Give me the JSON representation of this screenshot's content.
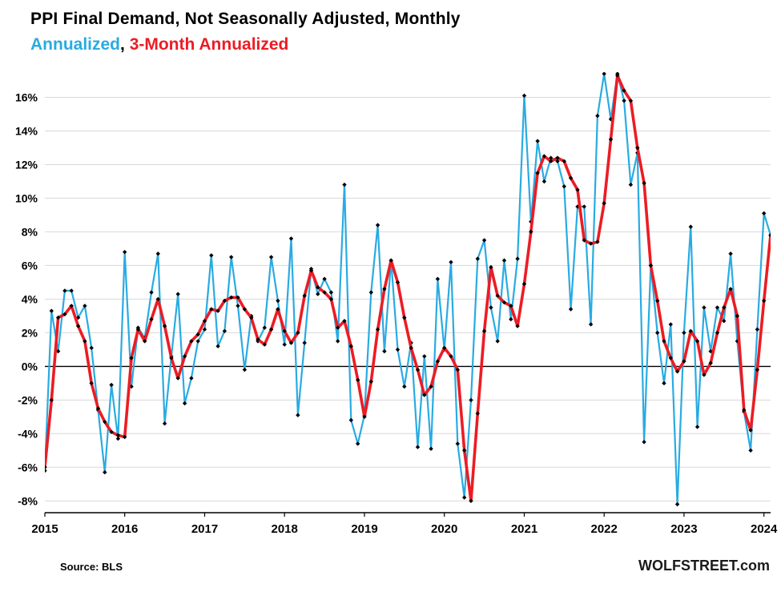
{
  "title": "PPI Final Demand, Not Seasonally Adjusted, Monthly",
  "legend": {
    "annualized": "Annualized",
    "separator": ", ",
    "three_month": "3-Month Annualized"
  },
  "footer": {
    "source": "Source: BLS",
    "watermark": "WOLFSTREET.com"
  },
  "colors": {
    "annualized": "#29abe2",
    "three_month": "#ec1c24",
    "marker": "#000000",
    "grid": "#d8d8d8",
    "axis": "#000000"
  },
  "chart_data": {
    "type": "line",
    "title": "PPI Final Demand, Not Seasonally Adjusted, Monthly",
    "xlabel": "",
    "ylabel": "",
    "frequency": "monthly",
    "x_start": "2015-01",
    "x_end": "2024-02",
    "grid": true,
    "legend_position": "title",
    "ylim": [
      -8.7,
      17.5
    ],
    "y_gridline_step": 2,
    "y_tick_values": [
      16,
      14,
      12,
      10,
      8,
      6,
      4,
      2,
      0,
      -2,
      -4,
      -6,
      -8
    ],
    "y_tick_labels": [
      "16%",
      "14%",
      "12%",
      "10%",
      "8%",
      "6%",
      "4%",
      "2%",
      "0%",
      "-2%",
      "-4%",
      "-6%",
      "-8%"
    ],
    "x_tick_labels": [
      "2015",
      "2016",
      "2017",
      "2018",
      "2019",
      "2020",
      "2021",
      "2022",
      "2023",
      "2024"
    ],
    "series": [
      {
        "name": "Annualized",
        "color": "#29abe2",
        "values": [
          -6.2,
          3.3,
          0.9,
          4.5,
          4.5,
          2.9,
          3.6,
          1.1,
          -2.6,
          -6.3,
          -1.1,
          -4.3,
          6.8,
          -1.2,
          2.3,
          1.7,
          4.4,
          6.7,
          -3.4,
          0.6,
          4.3,
          -2.2,
          -0.7,
          1.5,
          2.2,
          6.6,
          1.2,
          2.1,
          6.5,
          3.6,
          -0.2,
          3.0,
          1.5,
          2.3,
          6.5,
          3.9,
          1.3,
          7.6,
          -2.9,
          1.4,
          5.8,
          4.3,
          5.2,
          4.4,
          1.5,
          10.8,
          -3.2,
          -4.6,
          -2.9,
          4.4,
          8.4,
          0.9,
          6.3,
          1.0,
          -1.2,
          1.4,
          -4.8,
          0.6,
          -4.9,
          5.2,
          1.0,
          6.2,
          -4.6,
          -7.8,
          -2.0,
          6.4,
          7.5,
          3.5,
          1.5,
          6.3,
          2.8,
          6.4,
          16.1,
          8.6,
          13.4,
          11.0,
          12.4,
          12.2,
          10.7,
          3.4,
          9.5,
          9.5,
          2.5,
          14.9,
          17.4,
          14.7,
          17.4,
          15.8,
          10.8,
          12.7,
          -4.5,
          6.0,
          2.0,
          -1.0,
          2.5,
          -8.2,
          2.0,
          8.3,
          -3.6,
          3.5,
          0.9,
          3.5,
          2.7,
          6.7,
          1.5,
          -2.7,
          -5.0,
          2.2,
          9.1,
          7.8
        ]
      },
      {
        "name": "3-Month Annualized",
        "color": "#ec1c24",
        "values": [
          -6.0,
          -2.0,
          2.9,
          3.1,
          3.6,
          2.4,
          1.5,
          -1.0,
          -2.5,
          -3.3,
          -3.9,
          -4.1,
          -4.2,
          0.5,
          2.2,
          1.5,
          2.8,
          4.0,
          2.4,
          0.5,
          -0.7,
          0.6,
          1.5,
          1.9,
          2.7,
          3.4,
          3.3,
          3.9,
          4.1,
          4.1,
          3.4,
          2.9,
          1.6,
          1.3,
          2.2,
          3.4,
          2.1,
          1.4,
          2.0,
          4.2,
          5.7,
          4.7,
          4.4,
          4.0,
          2.3,
          2.7,
          1.2,
          -0.8,
          -3.0,
          -0.9,
          2.2,
          4.6,
          6.3,
          5.0,
          2.9,
          1.1,
          -0.2,
          -1.7,
          -1.2,
          0.3,
          1.1,
          0.6,
          -0.2,
          -5.0,
          -8.0,
          -2.8,
          2.1,
          5.9,
          4.2,
          3.8,
          3.6,
          2.4,
          4.9,
          8.0,
          11.5,
          12.5,
          12.2,
          12.4,
          12.2,
          11.2,
          10.5,
          7.5,
          7.3,
          7.4,
          9.7,
          13.5,
          17.3,
          16.4,
          15.8,
          13.0,
          10.9,
          6.0,
          3.9,
          1.5,
          0.5,
          -0.3,
          0.3,
          2.1,
          1.5,
          -0.5,
          0.2,
          2.0,
          3.5,
          4.6,
          3.0,
          -2.6,
          -3.8,
          -0.2,
          3.9,
          7.8
        ]
      }
    ]
  }
}
